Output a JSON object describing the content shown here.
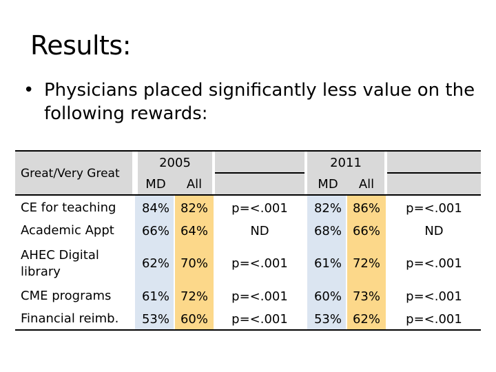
{
  "slide": {
    "title": "Results:",
    "bullet_symbol": "•",
    "bullet_text": "Physicians placed significantly less value on the following rewards:"
  },
  "table": {
    "row_header_label": "Great/Very Great",
    "year_2005": "2005",
    "year_2011": "2011",
    "col_md": "MD",
    "col_all": "All",
    "rows": [
      {
        "label": "CE for teaching",
        "md_2005": "84%",
        "all_2005": "82%",
        "p_2005": "p=<.001",
        "md_2011": "82%",
        "all_2011": "86%",
        "p_2011": "p=<.001"
      },
      {
        "label": "Academic Appt",
        "md_2005": "66%",
        "all_2005": "64%",
        "p_2005": "ND",
        "md_2011": "68%",
        "all_2011": "66%",
        "p_2011": "ND"
      },
      {
        "label": "AHEC Digital library",
        "md_2005": "62%",
        "all_2005": "70%",
        "p_2005": "p=<.001",
        "md_2011": "61%",
        "all_2011": "72%",
        "p_2011": "p=<.001"
      },
      {
        "label": "CME programs",
        "md_2005": "61%",
        "all_2005": "72%",
        "p_2005": "p=<.001",
        "md_2011": "60%",
        "all_2011": "73%",
        "p_2011": "p=<.001"
      },
      {
        "label": "Financial reimb.",
        "md_2005": "53%",
        "all_2005": "60%",
        "p_2005": "p=<.001",
        "md_2011": "53%",
        "all_2011": "62%",
        "p_2011": "p=<.001"
      }
    ]
  }
}
